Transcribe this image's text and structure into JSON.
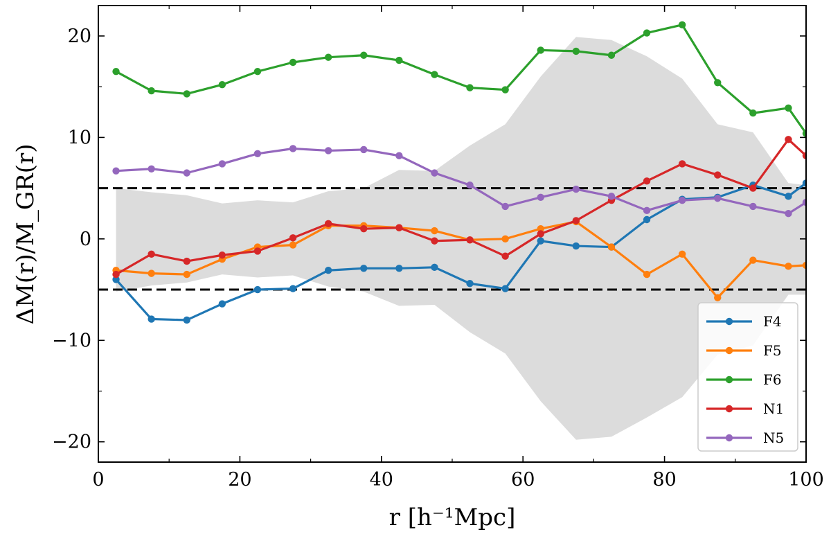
{
  "chart_data": {
    "type": "line",
    "xlabel": "r [h⁻¹Mpc]",
    "ylabel": "ΔM(r)/M_GR(r)",
    "xlim": [
      0,
      100
    ],
    "ylim": [
      -22,
      23
    ],
    "x_ticks": [
      0,
      20,
      40,
      60,
      80,
      100
    ],
    "y_ticks": [
      -20,
      -10,
      0,
      10,
      20
    ],
    "x_tick_labels": [
      "0",
      "20",
      "40",
      "60",
      "80",
      "100"
    ],
    "y_tick_labels": [
      "−20",
      "−10",
      "0",
      "10",
      "20"
    ],
    "x": [
      2.5,
      7.5,
      12.5,
      17.5,
      22.5,
      27.5,
      32.5,
      37.5,
      42.5,
      47.5,
      52.5,
      57.5,
      62.5,
      67.5,
      72.5,
      77.5,
      82.5,
      87.5,
      92.5,
      97.5,
      100
    ],
    "reference_lines": [
      5,
      -5
    ],
    "band": {
      "x": [
        2.5,
        7.5,
        12.5,
        17.5,
        22.5,
        27.5,
        32.5,
        37.5,
        42.5,
        47.5,
        52.5,
        57.5,
        62.5,
        67.5,
        72.5,
        77.5,
        82.5,
        87.5,
        92.5,
        97.5,
        100
      ],
      "upper": [
        5.0,
        4.6,
        4.3,
        3.5,
        3.8,
        3.6,
        4.7,
        5.0,
        6.8,
        6.7,
        9.2,
        11.3,
        16.0,
        19.9,
        19.6,
        18.0,
        15.8,
        11.3,
        10.5,
        5.5,
        5.3
      ],
      "lower": [
        -5.2,
        -4.6,
        -4.3,
        -3.5,
        -3.8,
        -3.6,
        -4.7,
        -5.2,
        -6.6,
        -6.5,
        -9.2,
        -11.3,
        -16.0,
        -19.8,
        -19.5,
        -17.6,
        -15.6,
        -11.4,
        -10.5,
        -5.5,
        -5.5
      ],
      "color": "#dcdcdc"
    },
    "series": [
      {
        "name": "F4",
        "color": "#1f77b4",
        "values": [
          -4.0,
          -7.9,
          -8.0,
          -6.4,
          -5.0,
          -4.9,
          -3.1,
          -2.9,
          -2.9,
          -2.8,
          -4.4,
          -4.9,
          -0.2,
          -0.7,
          -0.8,
          1.9,
          3.9,
          4.1,
          5.3,
          4.2,
          5.5
        ]
      },
      {
        "name": "F5",
        "color": "#ff7f0e",
        "values": [
          -3.1,
          -3.4,
          -3.5,
          -2.0,
          -0.8,
          -0.6,
          1.3,
          1.3,
          1.1,
          0.8,
          -0.1,
          0.0,
          1.0,
          1.7,
          -0.8,
          -3.5,
          -1.5,
          -5.8,
          -2.1,
          -2.7,
          -2.6
        ]
      },
      {
        "name": "F6",
        "color": "#2ca02c",
        "values": [
          16.5,
          14.6,
          14.3,
          15.2,
          16.5,
          17.4,
          17.9,
          18.1,
          17.6,
          16.2,
          14.9,
          14.7,
          18.6,
          18.5,
          18.1,
          20.3,
          21.1,
          15.4,
          12.4,
          12.9,
          10.4
        ]
      },
      {
        "name": "N1",
        "color": "#d62728",
        "values": [
          -3.5,
          -1.5,
          -2.2,
          -1.6,
          -1.2,
          0.1,
          1.5,
          1.0,
          1.1,
          -0.2,
          -0.1,
          -1.7,
          0.5,
          1.8,
          3.8,
          5.7,
          7.4,
          6.3,
          5.0,
          9.8,
          8.2
        ]
      },
      {
        "name": "N5",
        "color": "#9467bd",
        "values": [
          6.7,
          6.9,
          6.5,
          7.4,
          8.4,
          8.9,
          8.7,
          8.8,
          8.2,
          6.5,
          5.3,
          3.2,
          4.1,
          4.9,
          4.2,
          2.8,
          3.8,
          4.0,
          3.2,
          2.5,
          3.6
        ]
      }
    ],
    "legend_position": "bottom-right"
  }
}
